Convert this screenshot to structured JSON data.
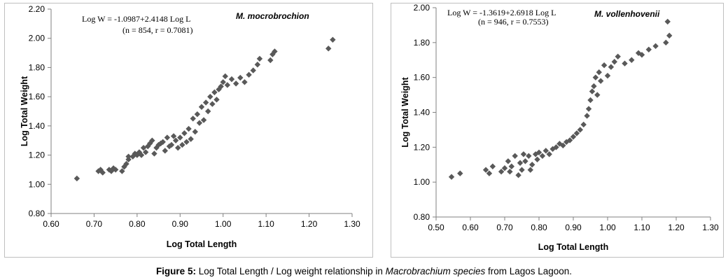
{
  "caption": {
    "label": "Figure 5:",
    "text_before": " Log Total Length / Log weight relationship in ",
    "italic": "Macrobrachium species",
    "text_after": " from Lagos Lagoon."
  },
  "colors": {
    "marker": "#595959",
    "axis": "#808080",
    "border": "#bfbfbf"
  },
  "chart_data": [
    {
      "type": "scatter",
      "marker": "diamond",
      "species": "M. mocrobrochion",
      "equation": "Log W = -1.0987+2.4148 Log L",
      "stats": "(n = 854, r = 0.7081)",
      "xlabel": "Log Total Length",
      "ylabel": "Log Total Weight",
      "xlim": [
        0.6,
        1.3
      ],
      "ylim": [
        0.8,
        2.2
      ],
      "xticks": [
        "0.60",
        "0.70",
        "0.80",
        "0.90",
        "1.00",
        "1.10",
        "1.20",
        "1.30"
      ],
      "yticks": [
        "0.80",
        "1.00",
        "1.20",
        "1.40",
        "1.60",
        "1.80",
        "2.00",
        "2.20"
      ],
      "grid": false,
      "series": [
        {
          "x": [
            0.66,
            0.71,
            0.715,
            0.72,
            0.735,
            0.74,
            0.745,
            0.75,
            0.765,
            0.77,
            0.775,
            0.78,
            0.78,
            0.79,
            0.795,
            0.8,
            0.805,
            0.81,
            0.815,
            0.82,
            0.825,
            0.83,
            0.835,
            0.84,
            0.845,
            0.85,
            0.855,
            0.86,
            0.865,
            0.87,
            0.875,
            0.88,
            0.885,
            0.89,
            0.895,
            0.9,
            0.905,
            0.91,
            0.915,
            0.92,
            0.925,
            0.93,
            0.935,
            0.94,
            0.945,
            0.95,
            0.955,
            0.96,
            0.965,
            0.97,
            0.975,
            0.98,
            0.985,
            0.99,
            0.995,
            1.0,
            1.005,
            1.01,
            1.02,
            1.03,
            1.04,
            1.05,
            1.06,
            1.07,
            1.08,
            1.085,
            1.11,
            1.115,
            1.12,
            1.245,
            1.255
          ],
          "y": [
            1.04,
            1.09,
            1.1,
            1.08,
            1.1,
            1.09,
            1.11,
            1.1,
            1.09,
            1.12,
            1.14,
            1.17,
            1.19,
            1.19,
            1.21,
            1.2,
            1.22,
            1.2,
            1.25,
            1.22,
            1.26,
            1.28,
            1.3,
            1.21,
            1.25,
            1.27,
            1.28,
            1.29,
            1.23,
            1.32,
            1.26,
            1.27,
            1.33,
            1.3,
            1.25,
            1.32,
            1.27,
            1.35,
            1.29,
            1.38,
            1.31,
            1.45,
            1.36,
            1.48,
            1.42,
            1.53,
            1.44,
            1.56,
            1.5,
            1.6,
            1.55,
            1.63,
            1.58,
            1.65,
            1.67,
            1.7,
            1.74,
            1.68,
            1.72,
            1.69,
            1.73,
            1.7,
            1.75,
            1.78,
            1.82,
            1.86,
            1.85,
            1.89,
            1.91,
            1.93,
            1.99
          ]
        }
      ]
    },
    {
      "type": "scatter",
      "marker": "diamond",
      "species": "M. vollenhovenii",
      "equation": "Log W = -1.3619+2.6918 Log L",
      "stats": "(n = 946, r = 0.7553)",
      "xlabel": "Log Total Length",
      "ylabel": "Log Total Weight",
      "xlim": [
        0.5,
        1.3
      ],
      "ylim": [
        0.8,
        2.0
      ],
      "xticks": [
        "0.50",
        "0.60",
        "0.70",
        "0.80",
        "0.90",
        "1.00",
        "1.10",
        "1.20",
        "1.30"
      ],
      "yticks": [
        "0.80",
        "1.00",
        "1.20",
        "1.40",
        "1.60",
        "1.80",
        "2.00"
      ],
      "grid": false,
      "series": [
        {
          "x": [
            0.545,
            0.57,
            0.645,
            0.655,
            0.665,
            0.69,
            0.7,
            0.71,
            0.715,
            0.72,
            0.73,
            0.74,
            0.745,
            0.75,
            0.755,
            0.76,
            0.77,
            0.775,
            0.78,
            0.79,
            0.795,
            0.8,
            0.81,
            0.82,
            0.83,
            0.84,
            0.85,
            0.86,
            0.87,
            0.88,
            0.89,
            0.9,
            0.91,
            0.92,
            0.93,
            0.94,
            0.945,
            0.95,
            0.955,
            0.96,
            0.965,
            0.97,
            0.975,
            0.98,
            0.99,
            1.0,
            1.01,
            1.02,
            1.03,
            1.05,
            1.07,
            1.09,
            1.1,
            1.12,
            1.14,
            1.17,
            1.175,
            1.18
          ],
          "y": [
            1.03,
            1.05,
            1.07,
            1.05,
            1.09,
            1.06,
            1.08,
            1.12,
            1.06,
            1.09,
            1.15,
            1.04,
            1.11,
            1.07,
            1.16,
            1.12,
            1.15,
            1.07,
            1.1,
            1.16,
            1.13,
            1.17,
            1.15,
            1.18,
            1.16,
            1.19,
            1.2,
            1.22,
            1.21,
            1.23,
            1.24,
            1.26,
            1.28,
            1.3,
            1.33,
            1.38,
            1.42,
            1.47,
            1.52,
            1.55,
            1.6,
            1.5,
            1.63,
            1.58,
            1.67,
            1.61,
            1.66,
            1.69,
            1.72,
            1.68,
            1.7,
            1.74,
            1.73,
            1.76,
            1.78,
            1.8,
            1.92,
            1.84
          ]
        }
      ]
    }
  ]
}
